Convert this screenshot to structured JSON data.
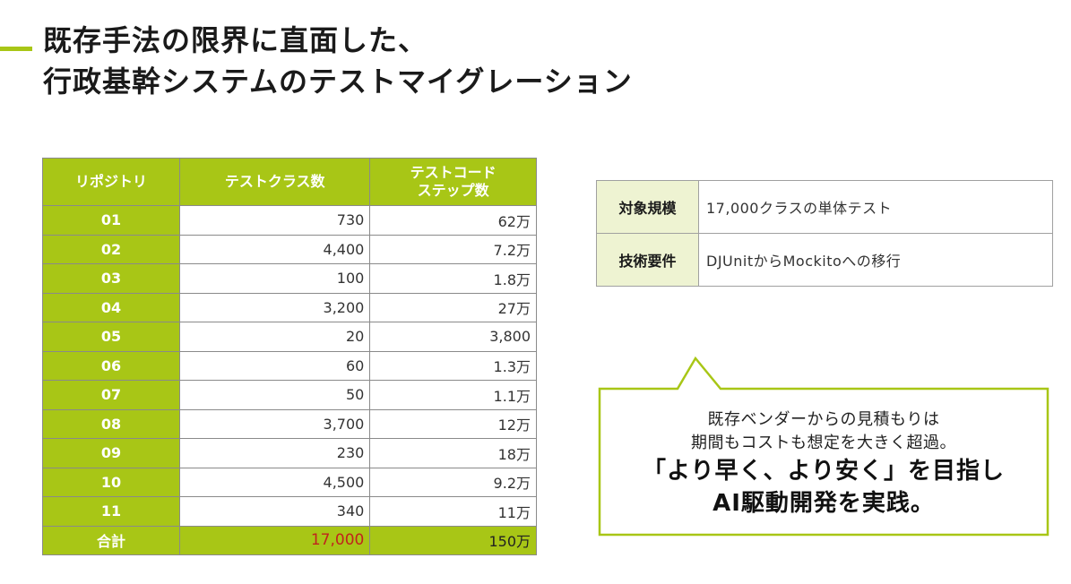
{
  "title": {
    "line1": "既存手法の限界に直面した、",
    "line2": "行政基幹システムのテストマイグレーション"
  },
  "repo_table": {
    "headers": [
      "リポジトリ",
      "テストクラス数",
      "テストコード\nステップ数"
    ],
    "rows": [
      {
        "repo": "01",
        "classes": "730",
        "steps": "62万"
      },
      {
        "repo": "02",
        "classes": "4,400",
        "steps": "7.2万"
      },
      {
        "repo": "03",
        "classes": "100",
        "steps": "1.8万"
      },
      {
        "repo": "04",
        "classes": "3,200",
        "steps": "27万"
      },
      {
        "repo": "05",
        "classes": "20",
        "steps": "3,800"
      },
      {
        "repo": "06",
        "classes": "60",
        "steps": "1.3万"
      },
      {
        "repo": "07",
        "classes": "50",
        "steps": "1.1万"
      },
      {
        "repo": "08",
        "classes": "3,700",
        "steps": "12万"
      },
      {
        "repo": "09",
        "classes": "230",
        "steps": "18万"
      },
      {
        "repo": "10",
        "classes": "4,500",
        "steps": "9.2万"
      },
      {
        "repo": "11",
        "classes": "340",
        "steps": "11万"
      }
    ],
    "total": {
      "label": "合計",
      "classes": "17,000",
      "steps": "150万"
    }
  },
  "info_table": [
    {
      "key": "対象規模",
      "value": "17,000クラスの単体テスト"
    },
    {
      "key": "技術要件",
      "value": "DJUnitからMockitoへの移行"
    }
  ],
  "callout": {
    "line1": "既存ベンダーからの見積もりは",
    "line2": "期間もコストも想定を大きく超過。",
    "line3": "「より早く、より安く」を目指し",
    "line4": "AI駆動開発を実践。"
  },
  "colors": {
    "accent": "#a8c616",
    "highlight_red": "#c0241c",
    "info_key_bg": "#eef3d2"
  }
}
